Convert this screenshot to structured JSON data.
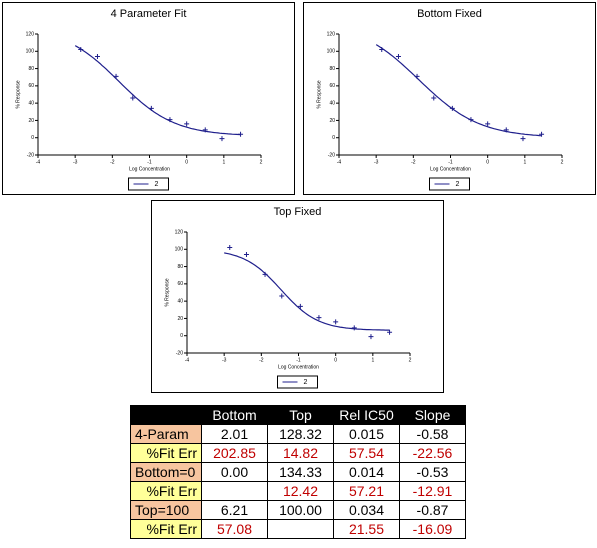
{
  "chart_data": [
    {
      "type": "scatter",
      "title": "4 Parameter Fit",
      "x_label": "Log Concentration",
      "y_label": "% Response",
      "x": [
        -2.85,
        -2.4,
        -1.9,
        -1.45,
        -0.95,
        -0.45,
        0,
        0.5,
        0.95,
        1.45
      ],
      "series": [
        {
          "name": "2",
          "color": "#1f1f8c",
          "values": [
            102,
            94,
            71,
            46,
            34,
            21,
            16,
            9,
            -1,
            4
          ]
        }
      ],
      "xlim": [
        -4,
        2
      ],
      "xticks": [
        -4,
        -3,
        -2,
        -1,
        0,
        1,
        2
      ],
      "ylim": [
        -20,
        120
      ],
      "yticks": [
        -20,
        0,
        20,
        40,
        60,
        80,
        100,
        120
      ]
    },
    {
      "type": "scatter",
      "title": "Bottom Fixed",
      "x_label": "Log Concentration",
      "y_label": "% Response",
      "x": [
        -2.85,
        -2.4,
        -1.9,
        -1.45,
        -0.95,
        -0.45,
        0,
        0.5,
        0.95,
        1.45
      ],
      "series": [
        {
          "name": "2",
          "color": "#1f1f8c",
          "values": [
            102,
            94,
            71,
            46,
            34,
            21,
            16,
            9,
            -1,
            4
          ]
        }
      ],
      "xlim": [
        -4,
        2
      ],
      "xticks": [
        -4,
        -3,
        -2,
        -1,
        0,
        1,
        2
      ],
      "ylim": [
        -20,
        120
      ],
      "yticks": [
        -20,
        0,
        20,
        40,
        60,
        80,
        100,
        120
      ]
    },
    {
      "type": "scatter",
      "title": "Top Fixed",
      "x_label": "Log Concentration",
      "y_label": "% Response",
      "x": [
        -2.85,
        -2.4,
        -1.9,
        -1.45,
        -0.95,
        -0.45,
        0,
        0.5,
        0.95,
        1.45
      ],
      "series": [
        {
          "name": "2",
          "color": "#1f1f8c",
          "values": [
            102,
            94,
            71,
            46,
            34,
            21,
            16,
            9,
            -1,
            4
          ]
        }
      ],
      "xlim": [
        -4,
        2
      ],
      "xticks": [
        -4,
        -3,
        -2,
        -1,
        0,
        1,
        2
      ],
      "ylim": [
        -20,
        120
      ],
      "yticks": [
        -20,
        0,
        20,
        40,
        60,
        80,
        100,
        120
      ]
    }
  ],
  "table": {
    "header": [
      null,
      "Bottom",
      "Top",
      "Rel IC50",
      "Slope"
    ],
    "rows": [
      [
        "4-Param",
        "2.01",
        "128.32",
        "0.015",
        "-0.58"
      ],
      [
        "%Fit Err",
        "202.85",
        "14.82",
        "57.54",
        "-22.56"
      ],
      [
        "Bottom=0",
        "0.00",
        "134.33",
        "0.014",
        "-0.53"
      ],
      [
        "%Fit Err",
        null,
        "12.42",
        "57.21",
        "-12.91"
      ],
      [
        "Top=100",
        "6.21",
        "100.00",
        "0.034",
        "-0.87"
      ],
      [
        "%Fit Err",
        "57.08",
        null,
        "21.55",
        "-16.09"
      ]
    ]
  }
}
